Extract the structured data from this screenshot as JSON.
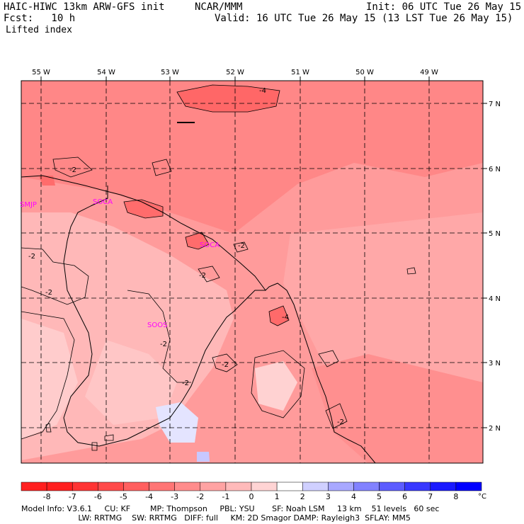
{
  "header": {
    "model": "HAIC-HIWC 13km ARW-GFS init",
    "org": "NCAR/MMM",
    "init": "Init: 06 UTC Tue 26 May 15",
    "fcst": "Fcst:   10 h",
    "valid": "Valid: 16 UTC Tue 26 May 15 (13 LST Tue 26 May 15)",
    "field": "Lifted index"
  },
  "lon_labels": [
    "55 W",
    "54 W",
    "53 W",
    "52 W",
    "51 W",
    "50 W",
    "49 W"
  ],
  "lat_labels": [
    "7 N",
    "6 N",
    "5 N",
    "4 N",
    "3 N",
    "2 N"
  ],
  "stations": [
    "SMJP",
    "SOCA",
    "SOCA",
    "SOOS"
  ],
  "contour_labels": [
    "-4",
    "-2",
    "-2",
    "-2",
    "-2",
    "-2",
    "-2",
    "-2",
    "-2",
    "-2",
    "-4",
    "-2"
  ],
  "colorbar": {
    "labels": [
      "-8",
      "-7",
      "-6",
      "-5",
      "-4",
      "-3",
      "-2",
      "-1",
      "0",
      "1",
      "2",
      "3",
      "4",
      "5",
      "6",
      "7",
      "8"
    ],
    "unit": "°C",
    "colors": [
      "#ff2020",
      "#ff3535",
      "#ff4a4a",
      "#ff5f5f",
      "#ff7575",
      "#ff8c8c",
      "#ffa3a3",
      "#ffbaba",
      "#ffd4d4",
      "#ffffff",
      "#d0d0ff",
      "#a8a8ff",
      "#8282ff",
      "#5c5cff",
      "#3838ff",
      "#1a1aff",
      "#0000ff"
    ]
  },
  "footer": {
    "line1": "Model Info: V3.6.1     CU: KF        MP: Thompson     PBL: YSU       SF: Noah LSM     13 km    51 levels   60 sec",
    "line2": "                       LW: RRTMG    SW: RRTMG   DIFF: full     KM: 2D Smagor DAMP: Rayleigh3  SFLAY: MM5"
  }
}
